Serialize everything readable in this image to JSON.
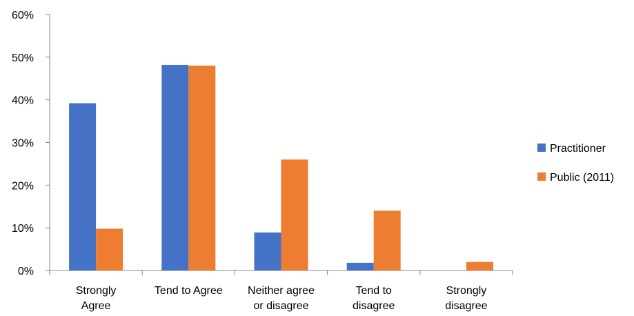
{
  "chart_data": {
    "type": "bar",
    "categories": [
      [
        "Strongly",
        "Agree"
      ],
      [
        "Tend to Agree"
      ],
      [
        "Neither agree",
        "or disagree"
      ],
      [
        "Tend to",
        "disagree"
      ],
      [
        "Strongly",
        "disagree"
      ]
    ],
    "series": [
      {
        "name": "Practitioner",
        "color": "#4472C4",
        "values": [
          39.2,
          48.2,
          8.9,
          1.8,
          0
        ]
      },
      {
        "name": "Public (2011)",
        "color": "#ED7D31",
        "values": [
          9.8,
          48.0,
          26.0,
          14.0,
          2.0
        ]
      }
    ],
    "ylim": [
      0,
      60
    ],
    "yticks": [
      0,
      10,
      20,
      30,
      40,
      50,
      60
    ],
    "ytick_labels": [
      "0%",
      "10%",
      "20%",
      "30%",
      "40%",
      "50%",
      "60%"
    ],
    "title": "",
    "xlabel": "",
    "ylabel": "",
    "grid": false,
    "legend_position": "right"
  }
}
